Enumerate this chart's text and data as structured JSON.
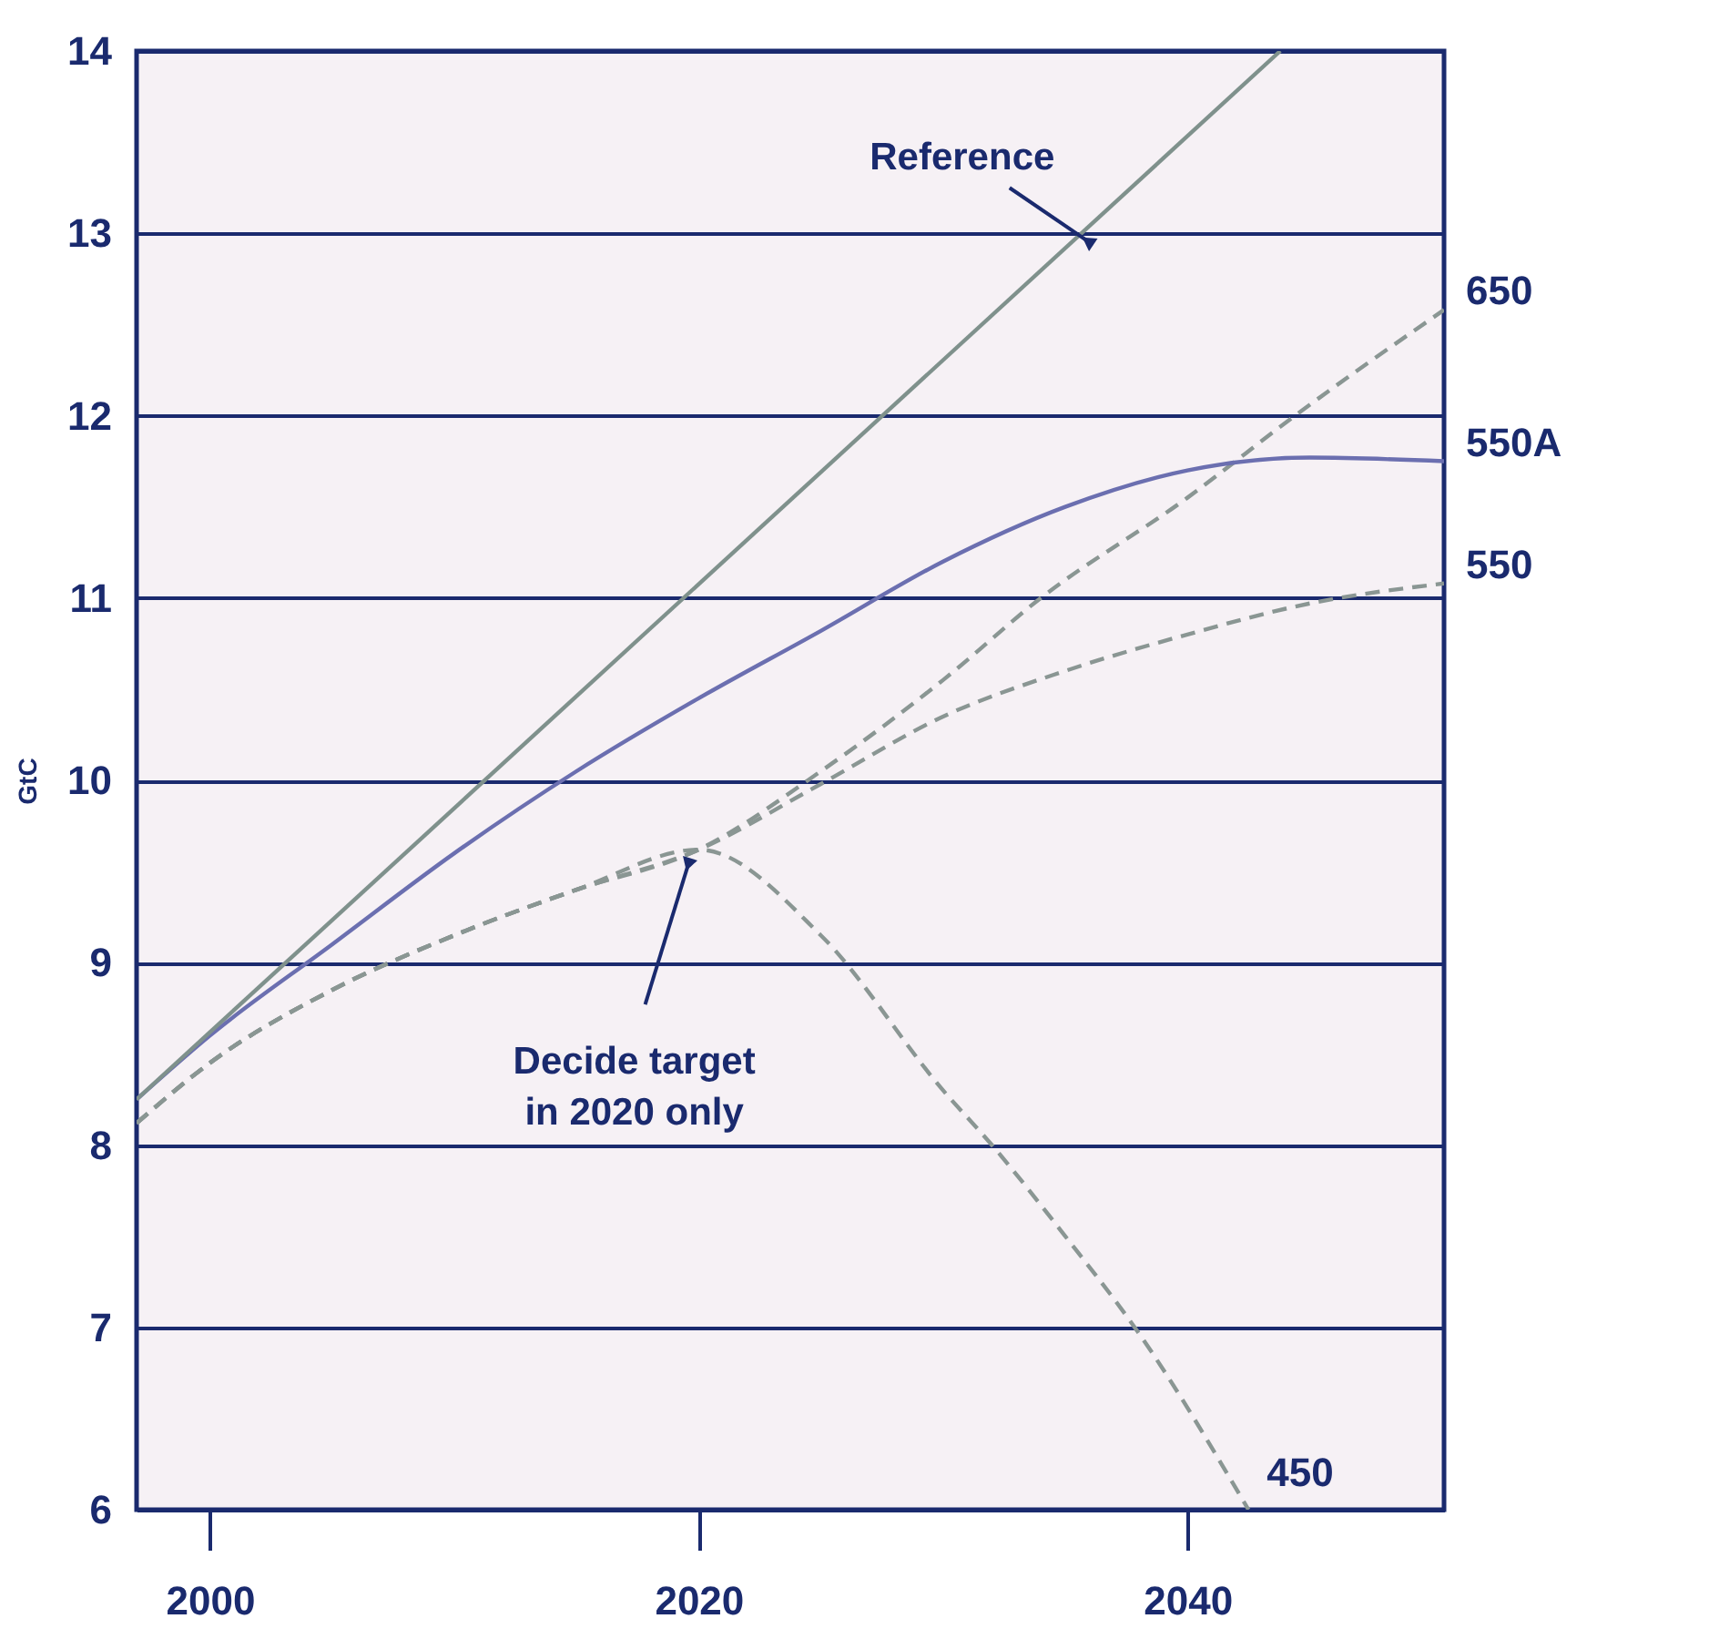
{
  "chart_data": {
    "type": "line",
    "ylabel": "GtC",
    "xlim": [
      1997,
      2050.5
    ],
    "ylim": [
      6,
      14
    ],
    "xticks": [
      2000,
      2020,
      2040
    ],
    "yticks": [
      6,
      7,
      8,
      9,
      10,
      11,
      12,
      13,
      14
    ],
    "grid": "y",
    "legend": false,
    "series": [
      {
        "name": "650",
        "color": "#8a9693",
        "line_style": "dashed",
        "x": [
          1997,
          2000,
          2005,
          2010,
          2015,
          2020,
          2025,
          2030,
          2034,
          2040,
          2044.4,
          2050.5
        ],
        "values": [
          8.12,
          8.45,
          8.85,
          9.15,
          9.4,
          9.62,
          10.05,
          10.55,
          11.0,
          11.55,
          12.0,
          12.58
        ]
      },
      {
        "name": "550A",
        "color": "#6b6fb0",
        "line_style": "solid",
        "x": [
          1997,
          2000,
          2005,
          2010,
          2015,
          2020,
          2025,
          2030,
          2035,
          2040,
          2045,
          2050.5
        ],
        "values": [
          8.25,
          8.6,
          9.1,
          9.6,
          10.05,
          10.45,
          10.82,
          11.2,
          11.5,
          11.7,
          11.77,
          11.75
        ]
      },
      {
        "name": "550",
        "color": "#8a9693",
        "line_style": "dashed",
        "x": [
          1997,
          2000,
          2005,
          2010,
          2015,
          2020,
          2025,
          2030,
          2035,
          2040,
          2045,
          2050.5
        ],
        "values": [
          8.12,
          8.45,
          8.85,
          9.15,
          9.4,
          9.62,
          9.98,
          10.35,
          10.6,
          10.8,
          10.97,
          11.08
        ]
      },
      {
        "name": "450",
        "color": "#8a9693",
        "line_style": "dashed",
        "x": [
          1997,
          2000,
          2005,
          2010,
          2015,
          2020,
          2025,
          2030,
          2032,
          2035,
          2038,
          2042.5
        ],
        "values": [
          8.12,
          8.45,
          8.85,
          9.15,
          9.4,
          9.62,
          9.15,
          8.3,
          8.0,
          7.5,
          6.97,
          6.0
        ]
      },
      {
        "color": "#7f918c",
        "line_style": "solid",
        "x": [
          1997,
          2043.8
        ],
        "values": [
          8.25,
          14.0
        ]
      }
    ],
    "annotations": [
      {
        "text": "Reference",
        "x": 2036,
        "y": 12.95
      },
      {
        "text": "Decide target\nin 2020 only",
        "x": 2019.6,
        "y": 9.55
      }
    ]
  }
}
